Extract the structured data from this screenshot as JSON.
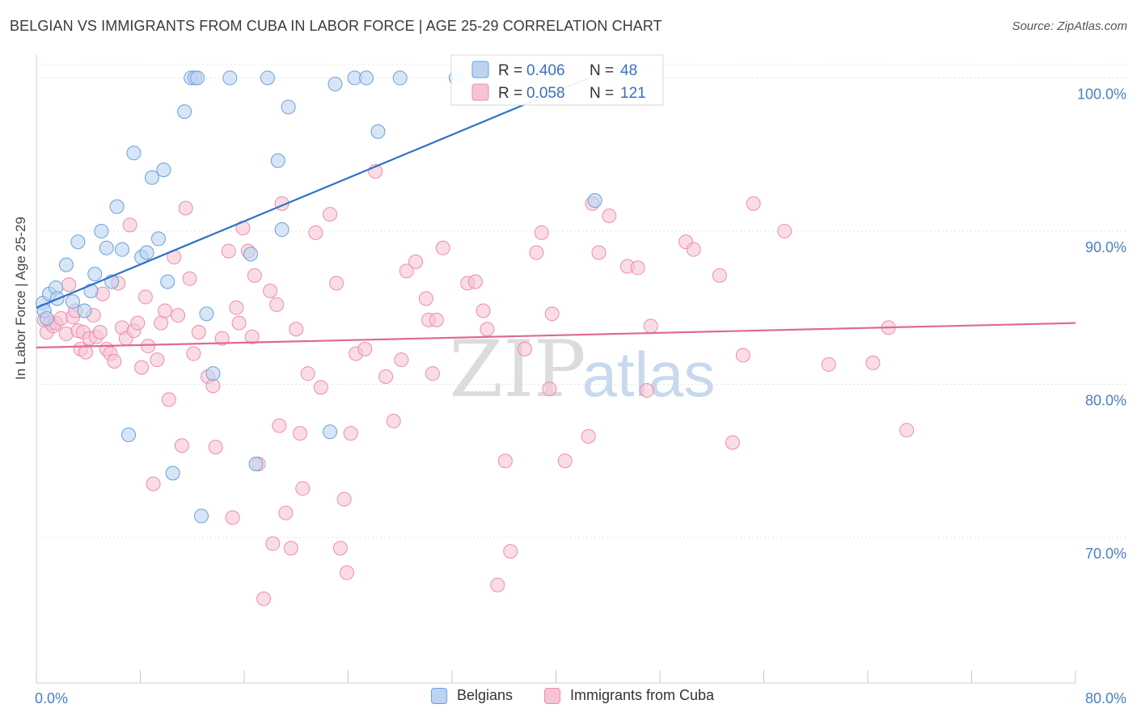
{
  "title": "BELGIAN VS IMMIGRANTS FROM CUBA IN LABOR FORCE | AGE 25-29 CORRELATION CHART",
  "source": "Source: ZipAtlas.com",
  "watermark": {
    "zip": "ZIP",
    "atlas": "atlas"
  },
  "chart_data": {
    "type": "scatter",
    "title": "BELGIAN VS IMMIGRANTS FROM CUBA IN LABOR FORCE | AGE 25-29 CORRELATION CHART",
    "xlabel": "",
    "ylabel": "In Labor Force | Age 25-29",
    "xlim": [
      0,
      80
    ],
    "ylim": [
      60.5,
      101.5
    ],
    "x_tick_labels": [
      "0.0%",
      "80.0%"
    ],
    "y_ticks": [
      70,
      80,
      90,
      100
    ],
    "y_tick_labels": [
      "70.0%",
      "80.0%",
      "90.0%",
      "100.0%"
    ],
    "grid": true,
    "legend_position": "top-center",
    "series": [
      {
        "name": "Belgians",
        "color": "#6aa0dc",
        "fill": "#bcd4f2",
        "line_color": "#2f72c8",
        "R": "0.406",
        "N": "48",
        "trend": {
          "x0": 0.0,
          "y0": 85.0,
          "x1": 42.5,
          "y1": 100.0
        },
        "points": [
          [
            0.5,
            85.3
          ],
          [
            0.6,
            84.8
          ],
          [
            0.8,
            84.3
          ],
          [
            1.0,
            85.9
          ],
          [
            1.5,
            86.3
          ],
          [
            1.6,
            85.6
          ],
          [
            2.3,
            87.8
          ],
          [
            2.8,
            85.4
          ],
          [
            3.2,
            89.3
          ],
          [
            3.7,
            84.8
          ],
          [
            4.2,
            86.1
          ],
          [
            4.5,
            87.2
          ],
          [
            5.0,
            90.0
          ],
          [
            5.4,
            88.9
          ],
          [
            5.8,
            86.7
          ],
          [
            6.2,
            91.6
          ],
          [
            6.6,
            88.8
          ],
          [
            7.1,
            76.7
          ],
          [
            7.5,
            95.1
          ],
          [
            8.1,
            88.3
          ],
          [
            8.5,
            88.6
          ],
          [
            8.9,
            93.5
          ],
          [
            9.4,
            89.5
          ],
          [
            9.8,
            94.0
          ],
          [
            10.1,
            86.7
          ],
          [
            10.5,
            74.2
          ],
          [
            11.4,
            97.8
          ],
          [
            11.9,
            100.0
          ],
          [
            12.2,
            100.0
          ],
          [
            12.4,
            100.0
          ],
          [
            12.7,
            71.4
          ],
          [
            13.1,
            84.6
          ],
          [
            13.6,
            80.7
          ],
          [
            14.9,
            100.0
          ],
          [
            16.5,
            88.5
          ],
          [
            16.9,
            74.8
          ],
          [
            17.8,
            100.0
          ],
          [
            18.6,
            94.6
          ],
          [
            18.9,
            90.1
          ],
          [
            19.4,
            98.1
          ],
          [
            22.6,
            76.9
          ],
          [
            23.0,
            99.6
          ],
          [
            24.5,
            100.0
          ],
          [
            25.4,
            100.0
          ],
          [
            26.3,
            96.5
          ],
          [
            28.0,
            100.0
          ],
          [
            32.3,
            100.0
          ],
          [
            43.0,
            92.0
          ]
        ]
      },
      {
        "name": "Immigrants from Cuba",
        "color": "#ec8eab",
        "fill": "#f7c4d3",
        "line_color": "#e06a92",
        "R": "0.058",
        "N": "121",
        "trend": {
          "x0": 0.0,
          "y0": 82.4,
          "x1": 80.0,
          "y1": 84.0
        },
        "points": [
          [
            0.6,
            84.2
          ],
          [
            0.8,
            83.4
          ],
          [
            1.1,
            84.0
          ],
          [
            1.3,
            83.8
          ],
          [
            1.5,
            84.0
          ],
          [
            1.9,
            84.3
          ],
          [
            2.3,
            83.3
          ],
          [
            2.5,
            86.5
          ],
          [
            2.8,
            84.4
          ],
          [
            3.0,
            84.8
          ],
          [
            3.2,
            83.5
          ],
          [
            3.4,
            82.3
          ],
          [
            3.6,
            83.4
          ],
          [
            3.8,
            82.1
          ],
          [
            4.1,
            83.0
          ],
          [
            4.4,
            84.5
          ],
          [
            4.6,
            83.1
          ],
          [
            4.9,
            83.4
          ],
          [
            5.1,
            85.9
          ],
          [
            5.4,
            82.3
          ],
          [
            5.7,
            82.0
          ],
          [
            6.0,
            81.5
          ],
          [
            6.3,
            86.6
          ],
          [
            6.6,
            83.7
          ],
          [
            6.9,
            83.0
          ],
          [
            7.2,
            90.4
          ],
          [
            7.5,
            83.5
          ],
          [
            7.8,
            84.0
          ],
          [
            8.1,
            81.1
          ],
          [
            8.4,
            85.7
          ],
          [
            8.6,
            82.5
          ],
          [
            9.0,
            73.5
          ],
          [
            9.3,
            81.6
          ],
          [
            9.6,
            84.0
          ],
          [
            9.9,
            84.8
          ],
          [
            10.2,
            79.0
          ],
          [
            10.6,
            88.3
          ],
          [
            10.9,
            84.5
          ],
          [
            11.2,
            76.0
          ],
          [
            11.5,
            91.5
          ],
          [
            11.8,
            86.9
          ],
          [
            12.1,
            82.0
          ],
          [
            12.5,
            83.4
          ],
          [
            13.2,
            80.5
          ],
          [
            13.6,
            79.9
          ],
          [
            13.8,
            75.9
          ],
          [
            14.3,
            83.0
          ],
          [
            14.8,
            88.7
          ],
          [
            15.1,
            71.3
          ],
          [
            15.4,
            85.0
          ],
          [
            15.6,
            84.0
          ],
          [
            15.9,
            90.2
          ],
          [
            16.3,
            88.7
          ],
          [
            16.6,
            83.1
          ],
          [
            16.8,
            87.1
          ],
          [
            17.1,
            74.8
          ],
          [
            17.5,
            66.0
          ],
          [
            18.0,
            86.1
          ],
          [
            18.2,
            69.6
          ],
          [
            18.5,
            85.2
          ],
          [
            18.7,
            77.3
          ],
          [
            18.9,
            91.8
          ],
          [
            19.2,
            71.6
          ],
          [
            19.6,
            69.3
          ],
          [
            20.0,
            83.6
          ],
          [
            20.3,
            76.8
          ],
          [
            20.5,
            73.2
          ],
          [
            20.9,
            80.7
          ],
          [
            21.5,
            89.9
          ],
          [
            21.9,
            79.8
          ],
          [
            22.6,
            91.1
          ],
          [
            23.1,
            86.6
          ],
          [
            23.4,
            69.3
          ],
          [
            23.7,
            72.5
          ],
          [
            23.9,
            67.7
          ],
          [
            24.2,
            76.8
          ],
          [
            24.6,
            82.0
          ],
          [
            25.3,
            82.3
          ],
          [
            26.1,
            93.9
          ],
          [
            26.9,
            80.5
          ],
          [
            27.5,
            77.6
          ],
          [
            28.1,
            81.6
          ],
          [
            28.5,
            87.4
          ],
          [
            29.2,
            88.0
          ],
          [
            30.0,
            85.6
          ],
          [
            30.2,
            84.2
          ],
          [
            30.5,
            80.7
          ],
          [
            30.8,
            84.2
          ],
          [
            31.3,
            88.9
          ],
          [
            33.2,
            86.6
          ],
          [
            33.8,
            86.7
          ],
          [
            34.4,
            84.8
          ],
          [
            34.7,
            83.6
          ],
          [
            35.5,
            66.9
          ],
          [
            36.1,
            75.0
          ],
          [
            36.5,
            69.1
          ],
          [
            37.6,
            82.3
          ],
          [
            38.5,
            88.6
          ],
          [
            38.9,
            89.9
          ],
          [
            39.5,
            79.7
          ],
          [
            39.7,
            84.6
          ],
          [
            40.7,
            75.0
          ],
          [
            42.5,
            76.6
          ],
          [
            42.8,
            91.8
          ],
          [
            43.3,
            88.6
          ],
          [
            44.1,
            91.0
          ],
          [
            45.5,
            87.7
          ],
          [
            46.3,
            87.6
          ],
          [
            47.0,
            79.6
          ],
          [
            47.3,
            83.8
          ],
          [
            50.0,
            89.3
          ],
          [
            50.6,
            88.8
          ],
          [
            52.6,
            87.1
          ],
          [
            53.6,
            76.2
          ],
          [
            54.4,
            81.9
          ],
          [
            55.2,
            91.8
          ],
          [
            57.6,
            90.0
          ],
          [
            61.0,
            81.3
          ],
          [
            64.4,
            81.4
          ],
          [
            65.6,
            83.7
          ],
          [
            67.0,
            77.0
          ]
        ]
      }
    ]
  },
  "legend_bottom": [
    {
      "label": "Belgians"
    },
    {
      "label": "Immigrants from Cuba"
    }
  ]
}
